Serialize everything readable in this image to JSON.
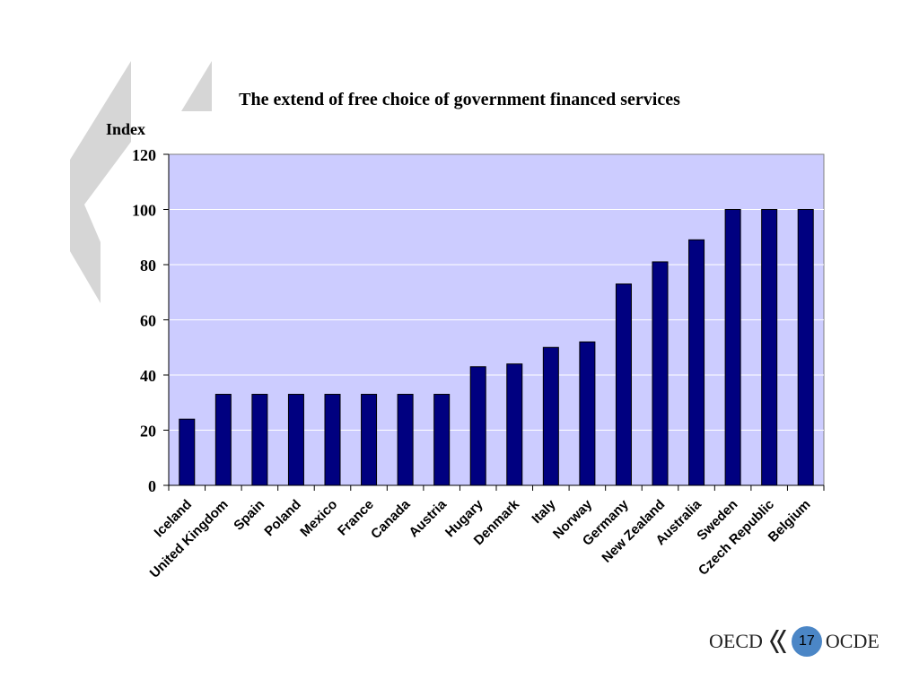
{
  "chart_data": {
    "type": "bar",
    "title": "The extend of free choice of government financed services",
    "ylabel": "Index",
    "xlabel": "",
    "ylim": [
      0,
      120
    ],
    "yticks": [
      0,
      20,
      40,
      60,
      80,
      100,
      120
    ],
    "grid": true,
    "categories": [
      "Iceland",
      "United Kingdom",
      "Spain",
      "Poland",
      "Mexico",
      "France",
      "Canada",
      "Austria",
      "Hugary",
      "Denmark",
      "Italy",
      "Norway",
      "Germany",
      "New Zealand",
      "Australia",
      "Sweden",
      "Czech Republic",
      "Belgium"
    ],
    "values": [
      24,
      33,
      33,
      33,
      33,
      33,
      33,
      33,
      43,
      44,
      50,
      52,
      73,
      81,
      89,
      100,
      100,
      100
    ],
    "colors": {
      "bar": "#000080",
      "plot_bg": "#ccccff",
      "grid": "#ffffff"
    }
  },
  "footer": {
    "left_text": "OECD",
    "page_number": "17",
    "right_text": "OCDE"
  }
}
